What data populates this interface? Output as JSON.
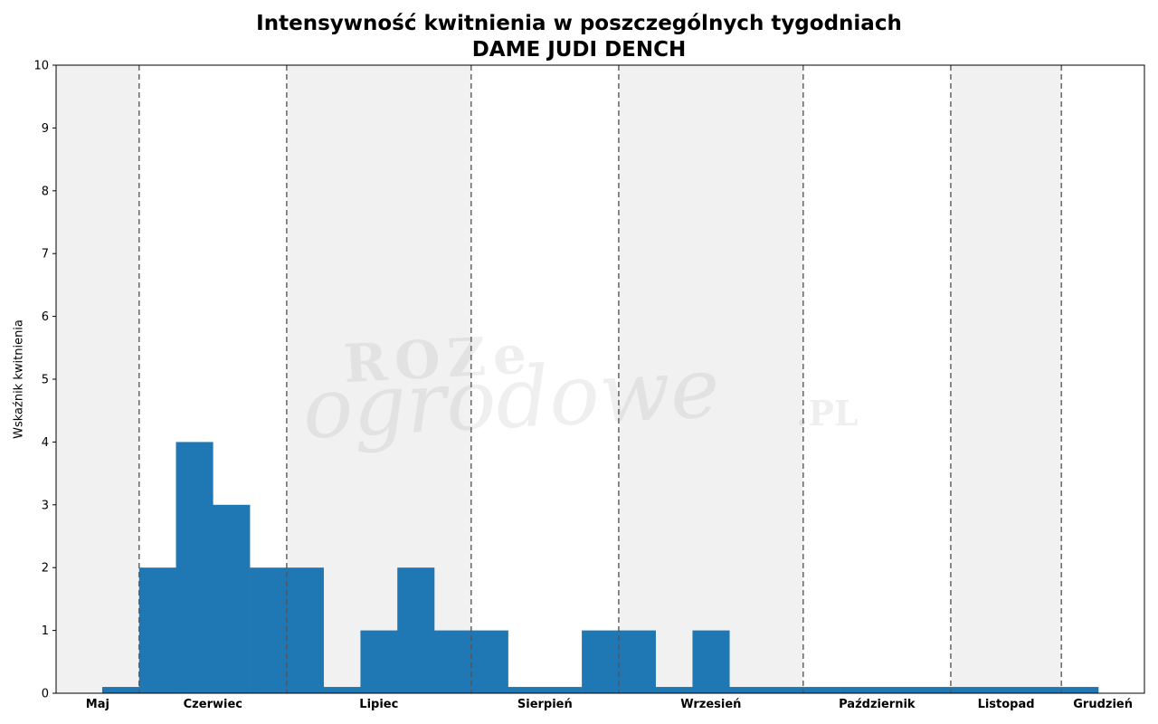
{
  "chart_data": {
    "type": "bar",
    "title": "Intensywność kwitnienia w poszczególnych tygodniach",
    "subtitle": "DAME JUDI DENCH",
    "xlabel": "",
    "ylabel": "Wskaźnik kwitnienia",
    "ylim": [
      0,
      10
    ],
    "yticks": [
      0,
      1,
      2,
      3,
      4,
      5,
      6,
      7,
      8,
      9,
      10
    ],
    "grid": false,
    "months": [
      "Maj",
      "Czerwiec",
      "Lipiec",
      "Sierpień",
      "Wrzesień",
      "Październik",
      "Listopad",
      "Grudzień"
    ],
    "values": [
      0.1,
      2,
      4,
      3,
      2,
      2,
      0.1,
      1,
      2,
      1,
      1,
      0.1,
      0.1,
      1,
      1,
      0.1,
      1,
      0.1,
      0.1,
      0.1,
      0.1,
      0.1,
      0.1,
      0.1,
      0.1,
      0.1,
      0.1
    ],
    "colors": {
      "bar": "#1f77b4",
      "shade": "#f1f1f1",
      "divider": "#555555"
    }
  },
  "watermark": {
    "line1": "ROZe",
    "line2": "ogrodowe",
    "suffix": ".PL"
  }
}
